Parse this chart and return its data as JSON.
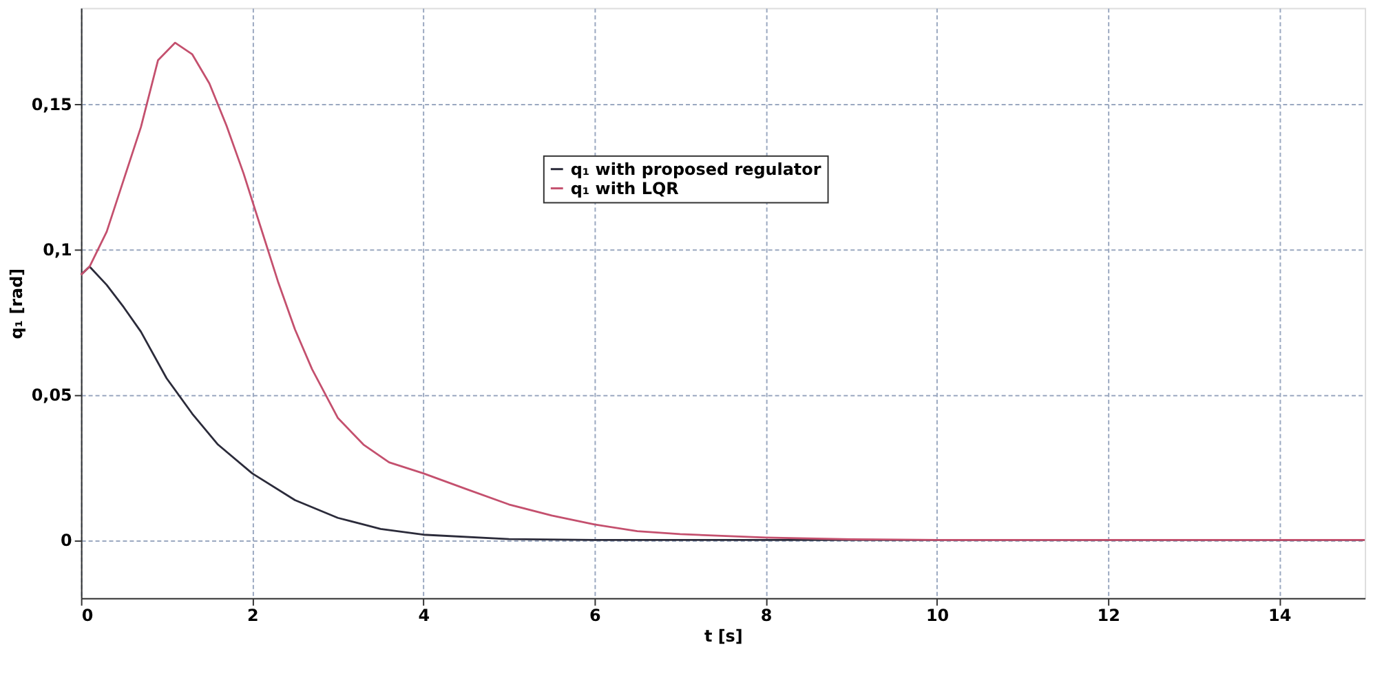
{
  "chart_data": {
    "type": "line",
    "xlabel": "t [s]",
    "ylabel": "q₁ [rad]",
    "xlim": [
      0,
      15
    ],
    "ylim": [
      -0.02,
      0.183
    ],
    "xticks": [
      0,
      2,
      4,
      6,
      8,
      10,
      12,
      14
    ],
    "yticks": [
      0,
      {
        "value": 0.05,
        "label": "0,05"
      },
      {
        "value": 0.1,
        "label": "0,1"
      },
      {
        "value": 0.15,
        "label": "0,15"
      }
    ],
    "grid": true,
    "legend": "top",
    "line_style": "solid",
    "marker": "none",
    "series": [
      {
        "name": "q₁ with proposed regulator",
        "color": "#2b2b3a",
        "x": [
          0,
          0.1,
          0.3,
          0.5,
          0.7,
          1,
          1.3,
          1.6,
          2,
          2.5,
          3,
          3.5,
          4,
          5,
          6,
          8,
          10,
          12,
          15
        ],
        "values": [
          0.0912,
          0.094,
          0.0877,
          0.08,
          0.0716,
          0.0556,
          0.0434,
          0.0328,
          0.0229,
          0.0137,
          0.0076,
          0.0038,
          0.0018,
          0.0003,
          0,
          0,
          0,
          0,
          0
        ]
      },
      {
        "name": "q₁ with LQR",
        "color": "#c4506e",
        "x": [
          0,
          0.1,
          0.3,
          0.5,
          0.7,
          0.9,
          1.1,
          1.3,
          1.5,
          1.7,
          1.9,
          2.1,
          2.3,
          2.5,
          2.7,
          3,
          3.3,
          3.6,
          4,
          4.5,
          5,
          5.5,
          6,
          6.5,
          7,
          8,
          9,
          10,
          12,
          15
        ],
        "values": [
          0.0912,
          0.094,
          0.106,
          0.124,
          0.142,
          0.165,
          0.171,
          0.167,
          0.157,
          0.1425,
          0.126,
          0.1075,
          0.089,
          0.0724,
          0.0587,
          0.042,
          0.0328,
          0.0267,
          0.0229,
          0.0175,
          0.0122,
          0.0084,
          0.0053,
          0.003,
          0.002,
          0.0008,
          0.0002,
          0,
          0,
          0
        ]
      }
    ]
  }
}
